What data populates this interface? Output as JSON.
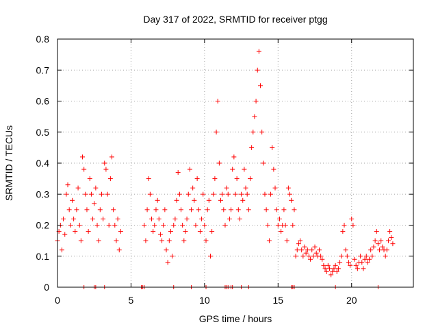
{
  "chart_data": {
    "type": "scatter",
    "title": "Day 317 of 2022, SRMTID for receiver ptgg",
    "xlabel": "GPS time / hours",
    "ylabel": "SRMTID / TECUs",
    "xlim": [
      0,
      24.2
    ],
    "ylim": [
      0,
      0.8
    ],
    "xticks": [
      0,
      5,
      10,
      15,
      20
    ],
    "xtick_labels": [
      "0",
      "5",
      "10",
      "15",
      "20"
    ],
    "yticks": [
      0,
      0.1,
      0.2,
      0.3,
      0.4,
      0.5,
      0.6,
      0.7,
      0.8
    ],
    "ytick_labels": [
      "0",
      "0.1",
      "0.2",
      "0.3",
      "0.4",
      "0.5",
      "0.6",
      "0.7",
      "0.8"
    ],
    "grid": true,
    "marker": "+",
    "color": "#ff0000",
    "series": [
      {
        "name": "SRMTID",
        "points": [
          [
            0.0,
            0.15
          ],
          [
            0.1,
            0.18
          ],
          [
            0.2,
            0.2
          ],
          [
            0.3,
            0.12
          ],
          [
            0.4,
            0.22
          ],
          [
            0.5,
            0.17
          ],
          [
            0.6,
            0.3
          ],
          [
            0.7,
            0.33
          ],
          [
            0.8,
            0.25
          ],
          [
            0.9,
            0.2
          ],
          [
            1.0,
            0.28
          ],
          [
            1.1,
            0.22
          ],
          [
            1.2,
            0.18
          ],
          [
            1.3,
            0.25
          ],
          [
            1.4,
            0.32
          ],
          [
            1.5,
            0.2
          ],
          [
            1.6,
            0.15
          ],
          [
            1.7,
            0.42
          ],
          [
            1.8,
            0.38
          ],
          [
            1.9,
            0.3
          ],
          [
            2.0,
            0.25
          ],
          [
            2.1,
            0.18
          ],
          [
            2.2,
            0.35
          ],
          [
            2.3,
            0.3
          ],
          [
            2.4,
            0.22
          ],
          [
            2.5,
            0.27
          ],
          [
            2.6,
            0.32
          ],
          [
            2.7,
            0.2
          ],
          [
            2.8,
            0.15
          ],
          [
            2.9,
            0.25
          ],
          [
            3.0,
            0.3
          ],
          [
            3.1,
            0.22
          ],
          [
            3.2,
            0.4
          ],
          [
            3.3,
            0.38
          ],
          [
            3.4,
            0.3
          ],
          [
            3.5,
            0.2
          ],
          [
            3.6,
            0.35
          ],
          [
            3.7,
            0.42
          ],
          [
            3.8,
            0.25
          ],
          [
            3.9,
            0.2
          ],
          [
            4.0,
            0.15
          ],
          [
            4.1,
            0.22
          ],
          [
            4.2,
            0.12
          ],
          [
            4.3,
            0.18
          ],
          [
            5.9,
            0.2
          ],
          [
            6.0,
            0.15
          ],
          [
            6.1,
            0.25
          ],
          [
            6.2,
            0.35
          ],
          [
            6.3,
            0.3
          ],
          [
            6.4,
            0.22
          ],
          [
            6.5,
            0.18
          ],
          [
            6.6,
            0.2
          ],
          [
            6.7,
            0.25
          ],
          [
            6.8,
            0.28
          ],
          [
            6.9,
            0.22
          ],
          [
            7.0,
            0.17
          ],
          [
            7.1,
            0.15
          ],
          [
            7.2,
            0.2
          ],
          [
            7.3,
            0.25
          ],
          [
            7.4,
            0.12
          ],
          [
            7.5,
            0.08
          ],
          [
            7.6,
            0.15
          ],
          [
            7.7,
            0.18
          ],
          [
            7.8,
            0.1
          ],
          [
            7.9,
            0.2
          ],
          [
            8.0,
            0.22
          ],
          [
            8.1,
            0.28
          ],
          [
            8.2,
            0.37
          ],
          [
            8.3,
            0.3
          ],
          [
            8.4,
            0.25
          ],
          [
            8.5,
            0.2
          ],
          [
            8.6,
            0.15
          ],
          [
            8.7,
            0.18
          ],
          [
            8.8,
            0.22
          ],
          [
            8.9,
            0.3
          ],
          [
            9.0,
            0.38
          ],
          [
            9.1,
            0.25
          ],
          [
            9.2,
            0.32
          ],
          [
            9.3,
            0.28
          ],
          [
            9.4,
            0.2
          ],
          [
            9.5,
            0.35
          ],
          [
            9.6,
            0.25
          ],
          [
            9.7,
            0.18
          ],
          [
            9.8,
            0.22
          ],
          [
            9.9,
            0.3
          ],
          [
            10.0,
            0.2
          ],
          [
            10.1,
            0.15
          ],
          [
            10.2,
            0.25
          ],
          [
            10.3,
            0.28
          ],
          [
            10.4,
            0.1
          ],
          [
            10.5,
            0.18
          ],
          [
            10.6,
            0.3
          ],
          [
            10.7,
            0.35
          ],
          [
            10.8,
            0.5
          ],
          [
            10.9,
            0.6
          ],
          [
            11.0,
            0.4
          ],
          [
            11.1,
            0.28
          ],
          [
            11.2,
            0.3
          ],
          [
            11.3,
            0.25
          ],
          [
            11.4,
            0.2
          ],
          [
            11.5,
            0.32
          ],
          [
            11.6,
            0.3
          ],
          [
            11.7,
            0.22
          ],
          [
            11.8,
            0.25
          ],
          [
            11.9,
            0.38
          ],
          [
            12.0,
            0.42
          ],
          [
            12.1,
            0.3
          ],
          [
            12.2,
            0.35
          ],
          [
            12.3,
            0.25
          ],
          [
            12.4,
            0.22
          ],
          [
            12.5,
            0.3
          ],
          [
            12.6,
            0.28
          ],
          [
            12.7,
            0.38
          ],
          [
            12.8,
            0.32
          ],
          [
            12.9,
            0.3
          ],
          [
            13.0,
            0.25
          ],
          [
            13.1,
            0.35
          ],
          [
            13.2,
            0.45
          ],
          [
            13.3,
            0.5
          ],
          [
            13.4,
            0.55
          ],
          [
            13.5,
            0.6
          ],
          [
            13.6,
            0.7
          ],
          [
            13.7,
            0.76
          ],
          [
            13.8,
            0.65
          ],
          [
            13.9,
            0.5
          ],
          [
            14.0,
            0.4
          ],
          [
            14.1,
            0.3
          ],
          [
            14.2,
            0.25
          ],
          [
            14.3,
            0.2
          ],
          [
            14.4,
            0.15
          ],
          [
            14.5,
            0.3
          ],
          [
            14.6,
            0.45
          ],
          [
            14.7,
            0.38
          ],
          [
            14.8,
            0.32
          ],
          [
            14.9,
            0.25
          ],
          [
            15.0,
            0.2
          ],
          [
            15.1,
            0.22
          ],
          [
            15.2,
            0.18
          ],
          [
            15.3,
            0.2
          ],
          [
            15.4,
            0.25
          ],
          [
            15.5,
            0.2
          ],
          [
            15.6,
            0.15
          ],
          [
            15.7,
            0.32
          ],
          [
            15.8,
            0.3
          ],
          [
            15.9,
            0.28
          ],
          [
            16.0,
            0.2
          ],
          [
            16.1,
            0.25
          ],
          [
            16.2,
            0.1
          ],
          [
            16.3,
            0.12
          ],
          [
            16.4,
            0.14
          ],
          [
            16.5,
            0.15
          ],
          [
            16.6,
            0.12
          ],
          [
            16.7,
            0.1
          ],
          [
            16.8,
            0.13
          ],
          [
            16.9,
            0.11
          ],
          [
            17.0,
            0.12
          ],
          [
            17.1,
            0.1
          ],
          [
            17.2,
            0.09
          ],
          [
            17.3,
            0.12
          ],
          [
            17.4,
            0.1
          ],
          [
            17.5,
            0.13
          ],
          [
            17.6,
            0.11
          ],
          [
            17.7,
            0.1
          ],
          [
            17.8,
            0.12
          ],
          [
            17.9,
            0.1
          ],
          [
            18.0,
            0.09
          ],
          [
            18.1,
            0.07
          ],
          [
            18.2,
            0.06
          ],
          [
            18.3,
            0.05
          ],
          [
            18.4,
            0.07
          ],
          [
            18.5,
            0.06
          ],
          [
            18.6,
            0.04
          ],
          [
            18.7,
            0.05
          ],
          [
            18.8,
            0.06
          ],
          [
            18.9,
            0.07
          ],
          [
            19.0,
            0.05
          ],
          [
            19.1,
            0.06
          ],
          [
            19.2,
            0.08
          ],
          [
            19.3,
            0.1
          ],
          [
            19.4,
            0.18
          ],
          [
            19.5,
            0.2
          ],
          [
            19.6,
            0.12
          ],
          [
            19.7,
            0.1
          ],
          [
            19.8,
            0.08
          ],
          [
            19.9,
            0.07
          ],
          [
            20.0,
            0.22
          ],
          [
            20.1,
            0.2
          ],
          [
            20.2,
            0.09
          ],
          [
            20.3,
            0.07
          ],
          [
            20.4,
            0.06
          ],
          [
            20.5,
            0.08
          ],
          [
            20.6,
            0.1
          ],
          [
            20.7,
            0.08
          ],
          [
            20.8,
            0.06
          ],
          [
            20.9,
            0.09
          ],
          [
            21.0,
            0.1
          ],
          [
            21.1,
            0.08
          ],
          [
            21.2,
            0.09
          ],
          [
            21.3,
            0.12
          ],
          [
            21.4,
            0.1
          ],
          [
            21.5,
            0.13
          ],
          [
            21.6,
            0.15
          ],
          [
            21.7,
            0.18
          ],
          [
            21.8,
            0.14
          ],
          [
            21.9,
            0.12
          ],
          [
            22.0,
            0.15
          ],
          [
            22.1,
            0.13
          ],
          [
            22.2,
            0.12
          ],
          [
            22.3,
            0.1
          ],
          [
            22.4,
            0.12
          ],
          [
            22.5,
            0.15
          ],
          [
            22.6,
            0.18
          ],
          [
            22.7,
            0.16
          ],
          [
            22.8,
            0.14
          ]
        ]
      }
    ],
    "zero_markers": [
      1.8,
      2.5,
      2.6,
      3.2,
      5.7,
      5.8,
      5.9,
      7.9,
      9.1,
      10.1,
      11.4,
      11.5,
      11.6,
      11.8,
      11.9,
      12.5,
      13.0,
      15.9,
      16.0,
      16.1,
      18.9,
      21.8
    ]
  }
}
